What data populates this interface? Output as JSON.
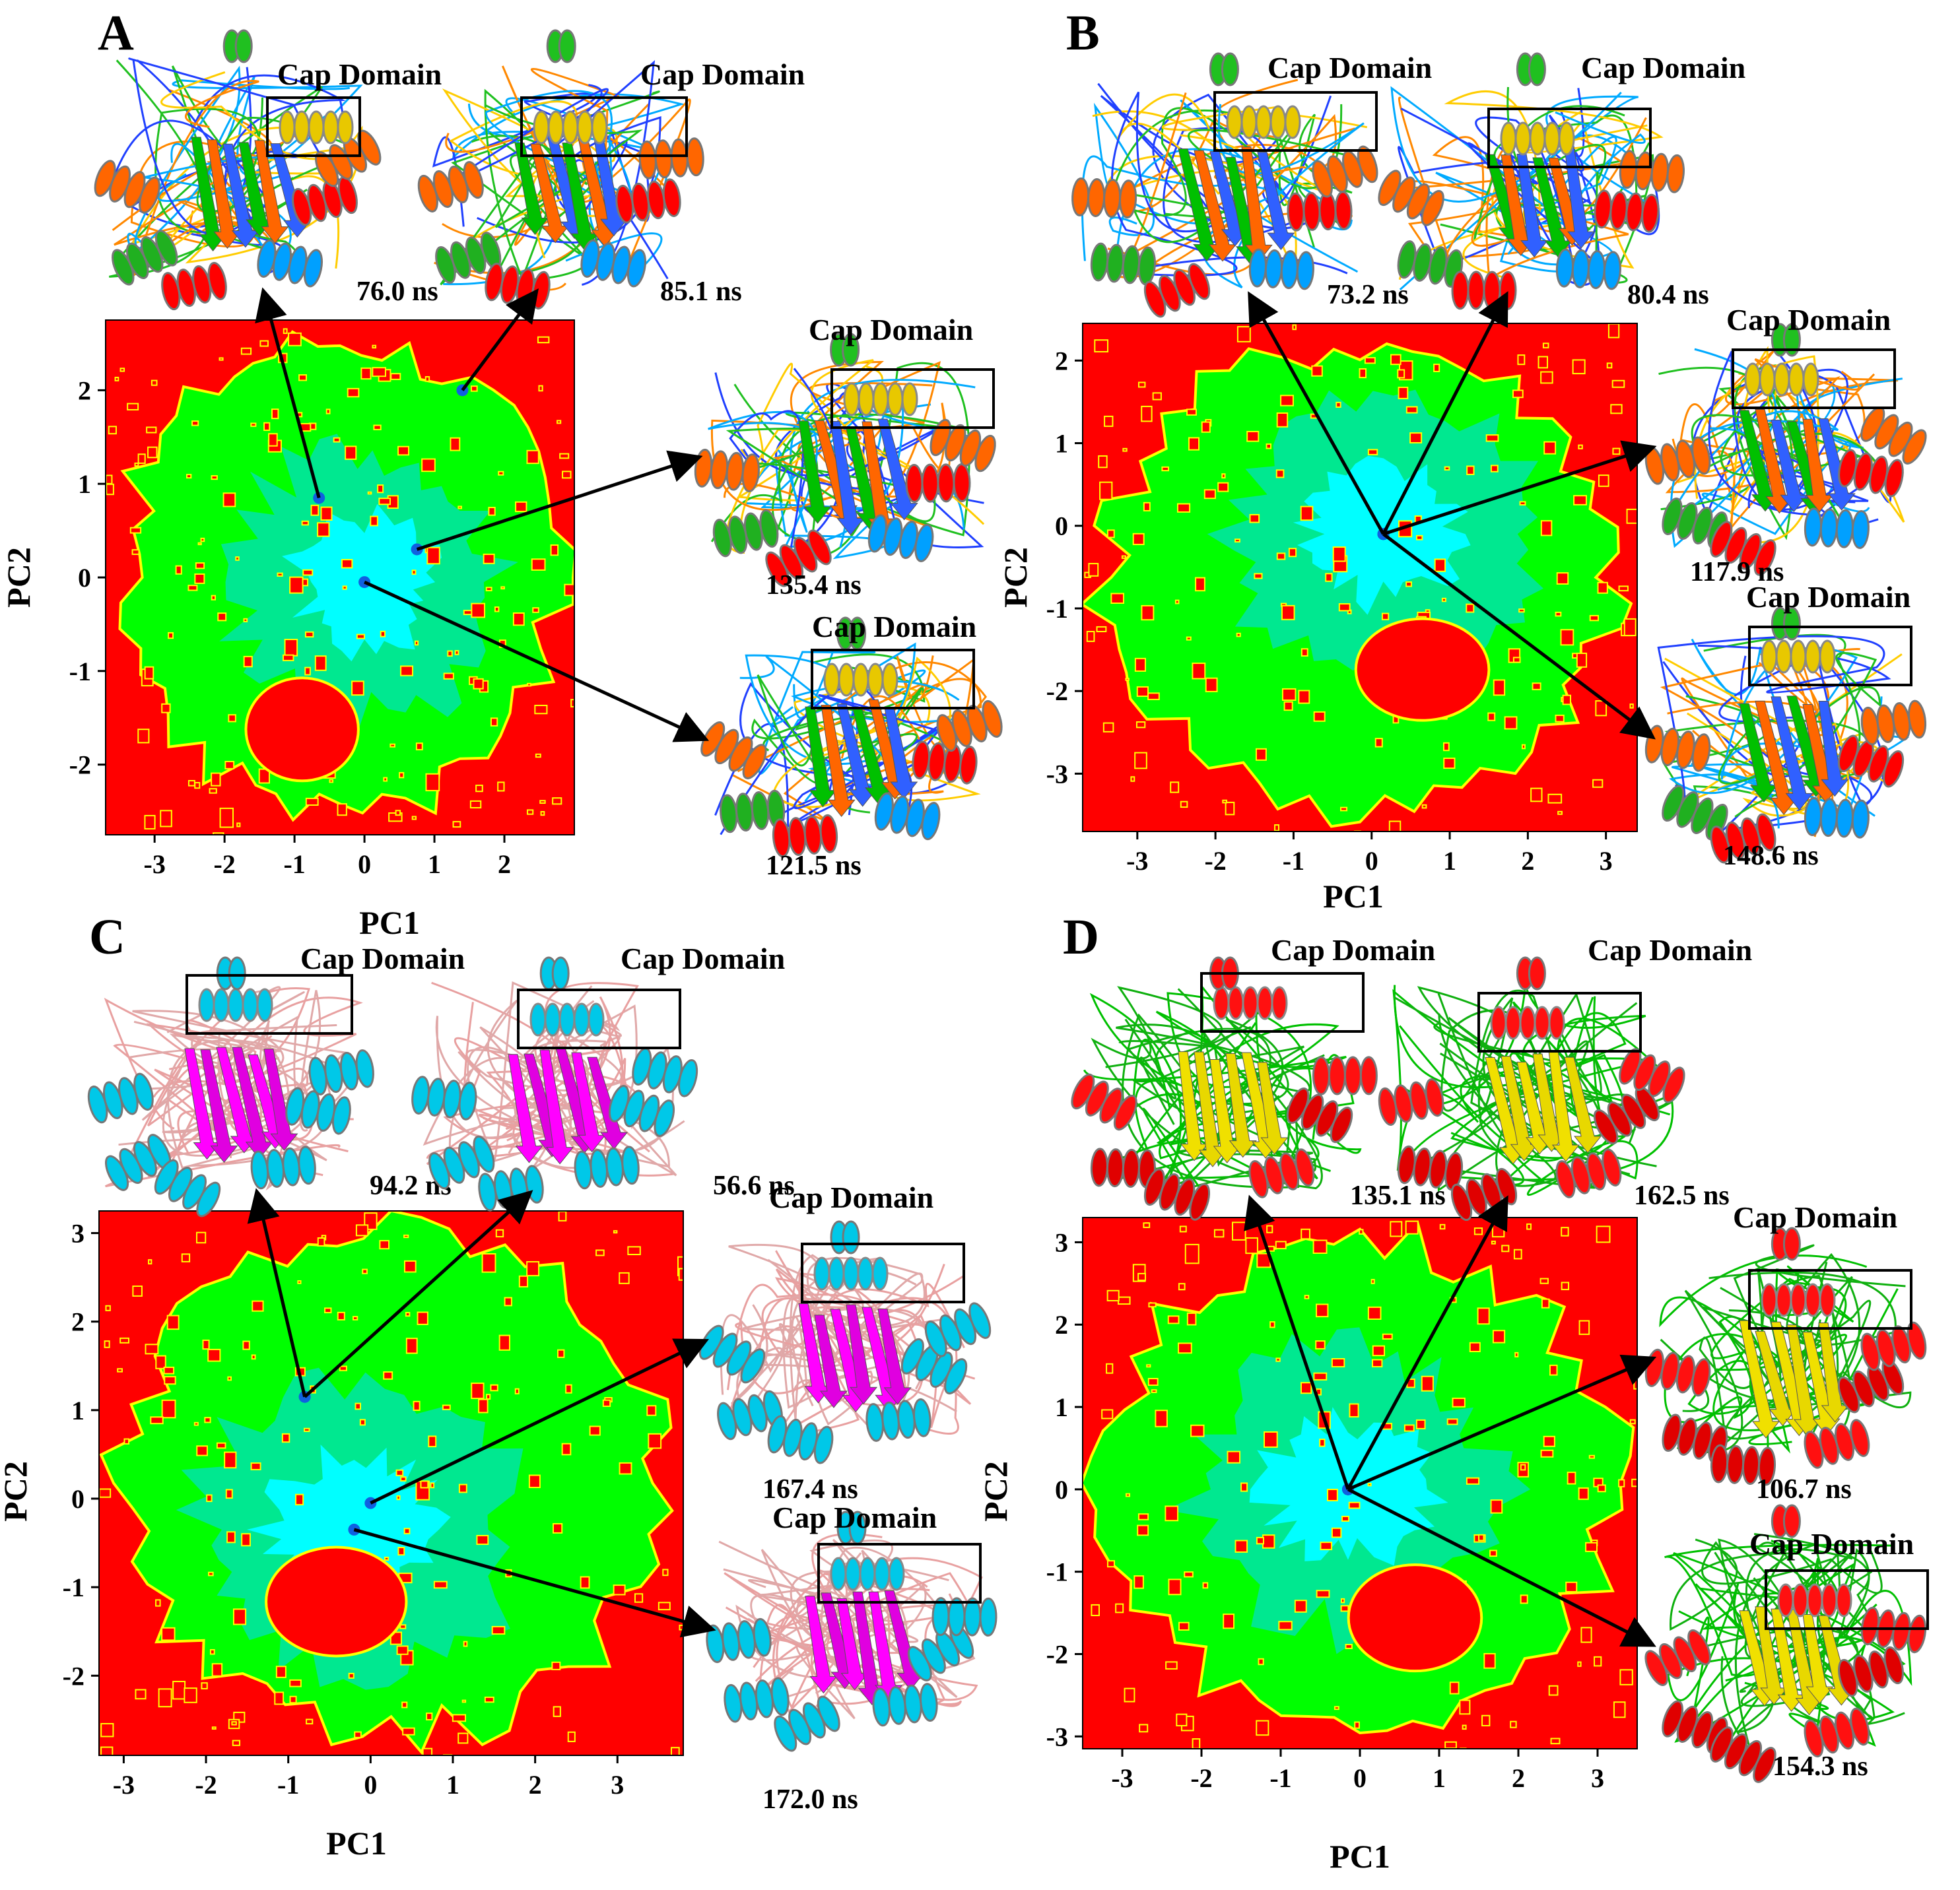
{
  "figure": {
    "colors": {
      "background": "#ff0000",
      "low_density": "#00ff00",
      "mid_density": "#00e890",
      "high_density": "#00ffff",
      "contour": "#ffff00",
      "minimum": "#1060e0",
      "arrow": "#000000",
      "box": "#000000"
    }
  },
  "chart_data": [
    {
      "panel": "A",
      "type": "heatmap",
      "xlabel": "PC1",
      "ylabel": "PC2",
      "xlim": [
        -3.7,
        3.0
      ],
      "ylim": [
        -2.75,
        2.75
      ],
      "xticks": [
        -3,
        -2,
        -1,
        0,
        1,
        2
      ],
      "yticks": [
        -2,
        -1,
        0,
        1,
        2
      ],
      "minima": [
        {
          "x": -0.65,
          "y": 0.85,
          "label": "76.0 ns",
          "cap": "Cap Domain",
          "palette": "rainbow"
        },
        {
          "x": 1.4,
          "y": 2.0,
          "label": "85.1 ns",
          "cap": "Cap Domain",
          "palette": "rainbow"
        },
        {
          "x": 0.75,
          "y": 0.3,
          "label": "135.4 ns",
          "cap": "Cap Domain",
          "palette": "rainbow"
        },
        {
          "x": 0.0,
          "y": -0.05,
          "label": "121.5 ns",
          "cap": "Cap Domain",
          "palette": "rainbow"
        }
      ]
    },
    {
      "panel": "B",
      "type": "heatmap",
      "xlabel": "PC1",
      "ylabel": "PC2",
      "xlim": [
        -3.7,
        3.4
      ],
      "ylim": [
        -3.7,
        2.45
      ],
      "xticks": [
        -3,
        -2,
        -1,
        0,
        1,
        2,
        3
      ],
      "yticks": [
        -3,
        -2,
        -1,
        0,
        1,
        2
      ],
      "minima": [
        {
          "x": 0.15,
          "y": -0.1,
          "label": "73.2 ns",
          "cap": "Cap Domain",
          "palette": "rainbow"
        },
        {
          "x": 0.15,
          "y": -0.1,
          "label": "80.4 ns",
          "cap": "Cap Domain",
          "palette": "rainbow"
        },
        {
          "x": 0.15,
          "y": -0.1,
          "label": "117.9 ns",
          "cap": "Cap Domain",
          "palette": "rainbow"
        },
        {
          "x": 0.15,
          "y": -0.1,
          "label": "148.6 ns",
          "cap": "Cap Domain",
          "palette": "rainbow"
        }
      ]
    },
    {
      "panel": "C",
      "type": "heatmap",
      "xlabel": "PC1",
      "ylabel": "PC2",
      "xlim": [
        -3.3,
        3.8
      ],
      "ylim": [
        -2.9,
        3.25
      ],
      "xticks": [
        -3,
        -2,
        -1,
        0,
        1,
        2,
        3
      ],
      "yticks": [
        -2,
        -1,
        0,
        1,
        2,
        3
      ],
      "minima": [
        {
          "x": -0.8,
          "y": 1.15,
          "label": "94.2 ns",
          "cap": "Cap Domain",
          "palette": "cyan"
        },
        {
          "x": -0.8,
          "y": 1.15,
          "label": "56.6 ns",
          "cap": "Cap Domain",
          "palette": "cyan"
        },
        {
          "x": 0.0,
          "y": -0.05,
          "label": "167.4 ns",
          "cap": "Cap Domain",
          "palette": "cyan"
        },
        {
          "x": -0.2,
          "y": -0.35,
          "label": "172.0 ns",
          "cap": "Cap Domain",
          "palette": "cyan"
        }
      ]
    },
    {
      "panel": "D",
      "type": "heatmap",
      "xlabel": "PC1",
      "ylabel": "PC2",
      "xlim": [
        -3.5,
        3.5
      ],
      "ylim": [
        -3.15,
        3.3
      ],
      "xticks": [
        -3,
        -2,
        -1,
        0,
        1,
        2,
        3
      ],
      "yticks": [
        -3,
        -2,
        -1,
        0,
        1,
        2,
        3
      ],
      "minima": [
        {
          "x": -0.15,
          "y": 0.0,
          "label": "135.1 ns",
          "cap": "Cap Domain",
          "palette": "red"
        },
        {
          "x": -0.15,
          "y": 0.0,
          "label": "162.5 ns",
          "cap": "Cap Domain",
          "palette": "red"
        },
        {
          "x": -0.15,
          "y": 0.0,
          "label": "106.7 ns",
          "cap": "Cap Domain",
          "palette": "red"
        },
        {
          "x": -0.15,
          "y": 0.0,
          "label": "154.3 ns",
          "cap": "Cap Domain",
          "palette": "red"
        }
      ]
    }
  ]
}
